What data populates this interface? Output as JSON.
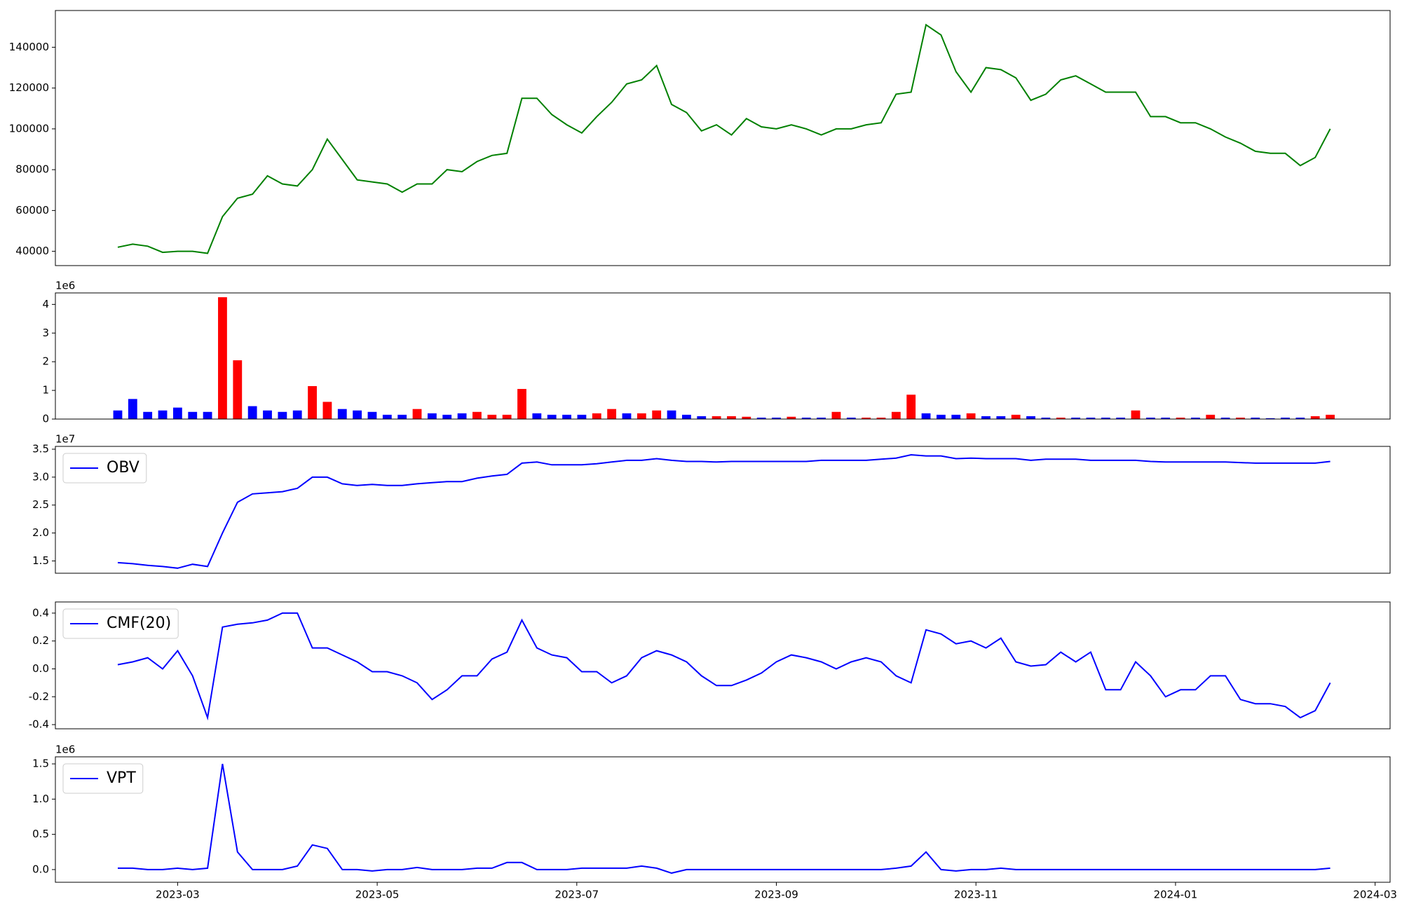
{
  "chart_data": [
    {
      "type": "line",
      "color": "#008000",
      "xlim": [
        0.775,
        14.15
      ],
      "ylim": [
        33000,
        158000
      ],
      "yticks": [
        40000,
        60000,
        80000,
        100000,
        120000,
        140000
      ],
      "x": [
        1.4,
        1.55,
        1.7,
        1.85,
        2,
        2.15,
        2.3,
        2.45,
        2.6,
        2.75,
        2.9,
        3.05,
        3.2,
        3.35,
        3.5,
        3.65,
        3.8,
        3.95,
        4.1,
        4.25,
        4.4,
        4.55,
        4.7,
        4.85,
        5,
        5.15,
        5.3,
        5.45,
        5.6,
        5.75,
        5.9,
        6.05,
        6.2,
        6.35,
        6.5,
        6.65,
        6.8,
        6.95,
        7.1,
        7.25,
        7.4,
        7.55,
        7.7,
        7.85,
        8,
        8.15,
        8.3,
        8.45,
        8.6,
        8.75,
        8.9,
        9.05,
        9.2,
        9.35,
        9.5,
        9.65,
        9.8,
        9.95,
        10.1,
        10.25,
        10.4,
        10.55,
        10.7,
        10.85,
        11,
        11.15,
        11.3,
        11.45,
        11.6,
        11.75,
        11.9,
        12.05,
        12.2,
        12.35,
        12.5,
        12.65,
        12.8,
        12.95,
        13.1,
        13.25,
        13.4,
        13.55
      ],
      "values": [
        42000,
        43500,
        42500,
        39500,
        40000,
        40000,
        39000,
        57000,
        66000,
        68000,
        77000,
        73000,
        72000,
        80000,
        95000,
        85000,
        75000,
        74000,
        73000,
        69000,
        73000,
        73000,
        80000,
        79000,
        84000,
        87000,
        88000,
        115000,
        115000,
        107000,
        102000,
        98000,
        106000,
        113000,
        122000,
        124000,
        131000,
        112000,
        108000,
        99000,
        102000,
        97000,
        105000,
        101000,
        100000,
        102000,
        100000,
        97000,
        100000,
        100000,
        102000,
        103000,
        117000,
        118000,
        151000,
        146000,
        128000,
        118000,
        130000,
        129000,
        125000,
        114000,
        117000,
        124000,
        126000,
        122000,
        118000,
        118000,
        118000,
        106000,
        106000,
        103000,
        103000,
        100000,
        96000,
        93000,
        89000,
        88000,
        88000,
        82000,
        86000,
        100000
      ]
    },
    {
      "type": "bar",
      "offset_label": "1e6",
      "xlim": [
        0.775,
        14.15
      ],
      "ylim": [
        0,
        4.4
      ],
      "yticks": [
        0,
        1,
        2,
        3,
        4
      ],
      "x": [
        1.4,
        1.55,
        1.7,
        1.85,
        2,
        2.15,
        2.3,
        2.45,
        2.6,
        2.75,
        2.9,
        3.05,
        3.2,
        3.35,
        3.5,
        3.65,
        3.8,
        3.95,
        4.1,
        4.25,
        4.4,
        4.55,
        4.7,
        4.85,
        5,
        5.15,
        5.3,
        5.45,
        5.6,
        5.75,
        5.9,
        6.05,
        6.2,
        6.35,
        6.5,
        6.65,
        6.8,
        6.95,
        7.1,
        7.25,
        7.4,
        7.55,
        7.7,
        7.85,
        8,
        8.15,
        8.3,
        8.45,
        8.6,
        8.75,
        8.9,
        9.05,
        9.2,
        9.35,
        9.5,
        9.65,
        9.8,
        9.95,
        10.1,
        10.25,
        10.4,
        10.55,
        10.7,
        10.85,
        11,
        11.15,
        11.3,
        11.45,
        11.6,
        11.75,
        11.9,
        12.05,
        12.2,
        12.35,
        12.5,
        12.65,
        12.8,
        12.95,
        13.1,
        13.25,
        13.4,
        13.55
      ],
      "values": [
        0.3,
        0.7,
        0.25,
        0.3,
        0.4,
        0.25,
        0.25,
        4.25,
        2.05,
        0.45,
        0.3,
        0.25,
        0.3,
        1.15,
        0.6,
        0.35,
        0.3,
        0.25,
        0.15,
        0.15,
        0.35,
        0.2,
        0.15,
        0.2,
        0.25,
        0.15,
        0.15,
        1.05,
        0.2,
        0.15,
        0.15,
        0.15,
        0.2,
        0.35,
        0.2,
        0.2,
        0.3,
        0.3,
        0.15,
        0.1,
        0.1,
        0.1,
        0.08,
        0.05,
        0.05,
        0.08,
        0.05,
        0.05,
        0.25,
        0.05,
        0.05,
        0.05,
        0.25,
        0.85,
        0.2,
        0.15,
        0.15,
        0.2,
        0.1,
        0.1,
        0.15,
        0.1,
        0.05,
        0.05,
        0.05,
        0.05,
        0.05,
        0.05,
        0.3,
        0.05,
        0.05,
        0.05,
        0.05,
        0.15,
        0.05,
        0.05,
        0.05,
        0.03,
        0.05,
        0.05,
        0.1,
        0.15
      ],
      "colors": [
        "blue",
        "blue",
        "blue",
        "blue",
        "blue",
        "blue",
        "blue",
        "red",
        "red",
        "blue",
        "blue",
        "blue",
        "blue",
        "red",
        "red",
        "blue",
        "blue",
        "blue",
        "blue",
        "blue",
        "red",
        "blue",
        "blue",
        "blue",
        "red",
        "red",
        "red",
        "red",
        "blue",
        "blue",
        "blue",
        "blue",
        "red",
        "red",
        "blue",
        "red",
        "red",
        "blue",
        "blue",
        "blue",
        "red",
        "red",
        "red",
        "blue",
        "blue",
        "red",
        "blue",
        "blue",
        "red",
        "blue",
        "red",
        "red",
        "red",
        "red",
        "blue",
        "blue",
        "blue",
        "red",
        "blue",
        "blue",
        "red",
        "blue",
        "blue",
        "red",
        "blue",
        "blue",
        "blue",
        "blue",
        "red",
        "blue",
        "blue",
        "red",
        "blue",
        "red",
        "blue",
        "red",
        "blue",
        "blue",
        "blue",
        "blue",
        "red",
        "red"
      ]
    },
    {
      "type": "line",
      "offset_label": "1e7",
      "legend": "upper left",
      "xlim": [
        0.775,
        14.15
      ],
      "ylim": [
        1.28,
        3.55
      ],
      "yticks": [
        1.5,
        {
          "value": 2,
          "label": "2.0"
        },
        2.5,
        {
          "value": 3,
          "label": "3.0"
        },
        3.5
      ],
      "x": [
        1.4,
        1.55,
        1.7,
        1.85,
        2,
        2.15,
        2.3,
        2.45,
        2.6,
        2.75,
        2.9,
        3.05,
        3.2,
        3.35,
        3.5,
        3.65,
        3.8,
        3.95,
        4.1,
        4.25,
        4.4,
        4.55,
        4.7,
        4.85,
        5,
        5.15,
        5.3,
        5.45,
        5.6,
        5.75,
        5.9,
        6.05,
        6.2,
        6.35,
        6.5,
        6.65,
        6.8,
        6.95,
        7.1,
        7.25,
        7.4,
        7.55,
        7.7,
        7.85,
        8,
        8.15,
        8.3,
        8.45,
        8.6,
        8.75,
        8.9,
        9.05,
        9.2,
        9.35,
        9.5,
        9.65,
        9.8,
        9.95,
        10.1,
        10.25,
        10.4,
        10.55,
        10.7,
        10.85,
        11,
        11.15,
        11.3,
        11.45,
        11.6,
        11.75,
        11.9,
        12.05,
        12.2,
        12.35,
        12.5,
        12.65,
        12.8,
        12.95,
        13.1,
        13.25,
        13.4,
        13.55
      ],
      "series": [
        {
          "name": "OBV",
          "color": "#0000ff",
          "values": [
            1.47,
            1.45,
            1.42,
            1.4,
            1.37,
            1.44,
            1.4,
            2.0,
            2.55,
            2.7,
            2.72,
            2.74,
            2.8,
            3.0,
            3.0,
            2.88,
            2.85,
            2.87,
            2.85,
            2.85,
            2.88,
            2.9,
            2.92,
            2.92,
            2.98,
            3.02,
            3.05,
            3.25,
            3.27,
            3.22,
            3.22,
            3.22,
            3.24,
            3.27,
            3.3,
            3.3,
            3.33,
            3.3,
            3.28,
            3.28,
            3.27,
            3.28,
            3.28,
            3.28,
            3.28,
            3.28,
            3.28,
            3.3,
            3.3,
            3.3,
            3.3,
            3.32,
            3.34,
            3.4,
            3.38,
            3.38,
            3.33,
            3.34,
            3.33,
            3.33,
            3.33,
            3.3,
            3.32,
            3.32,
            3.32,
            3.3,
            3.3,
            3.3,
            3.3,
            3.28,
            3.27,
            3.27,
            3.27,
            3.27,
            3.27,
            3.26,
            3.25,
            3.25,
            3.25,
            3.25,
            3.25,
            3.28
          ]
        }
      ]
    },
    {
      "type": "line",
      "legend": "upper left",
      "xlim": [
        0.775,
        14.15
      ],
      "ylim": [
        -0.43,
        0.48
      ],
      "yticks": [
        -0.4,
        -0.2,
        {
          "value": 0,
          "label": "0.0"
        },
        0.2,
        0.4
      ],
      "x": [
        1.4,
        1.55,
        1.7,
        1.85,
        2,
        2.15,
        2.3,
        2.45,
        2.6,
        2.75,
        2.9,
        3.05,
        3.2,
        3.35,
        3.5,
        3.65,
        3.8,
        3.95,
        4.1,
        4.25,
        4.4,
        4.55,
        4.7,
        4.85,
        5,
        5.15,
        5.3,
        5.45,
        5.6,
        5.75,
        5.9,
        6.05,
        6.2,
        6.35,
        6.5,
        6.65,
        6.8,
        6.95,
        7.1,
        7.25,
        7.4,
        7.55,
        7.7,
        7.85,
        8,
        8.15,
        8.3,
        8.45,
        8.6,
        8.75,
        8.9,
        9.05,
        9.2,
        9.35,
        9.5,
        9.65,
        9.8,
        9.95,
        10.1,
        10.25,
        10.4,
        10.55,
        10.7,
        10.85,
        11,
        11.15,
        11.3,
        11.45,
        11.6,
        11.75,
        11.9,
        12.05,
        12.2,
        12.35,
        12.5,
        12.65,
        12.8,
        12.95,
        13.1,
        13.25,
        13.4,
        13.55
      ],
      "series": [
        {
          "name": "CMF(20)",
          "color": "#0000ff",
          "values": [
            0.03,
            0.05,
            0.08,
            0.0,
            0.13,
            -0.05,
            -0.35,
            0.3,
            0.32,
            0.33,
            0.35,
            0.4,
            0.4,
            0.15,
            0.15,
            0.1,
            0.05,
            -0.02,
            -0.02,
            -0.05,
            -0.1,
            -0.22,
            -0.15,
            -0.05,
            -0.05,
            0.07,
            0.12,
            0.35,
            0.15,
            0.1,
            0.08,
            -0.02,
            -0.02,
            -0.1,
            -0.05,
            0.08,
            0.13,
            0.1,
            0.05,
            -0.05,
            -0.12,
            -0.12,
            -0.08,
            -0.03,
            0.05,
            0.1,
            0.08,
            0.05,
            0.0,
            0.05,
            0.08,
            0.05,
            -0.05,
            -0.1,
            0.28,
            0.25,
            0.18,
            0.2,
            0.15,
            0.22,
            0.05,
            0.02,
            0.03,
            0.12,
            0.05,
            0.12,
            -0.15,
            -0.15,
            0.05,
            -0.05,
            -0.2,
            -0.15,
            -0.15,
            -0.05,
            -0.05,
            -0.22,
            -0.25,
            -0.25,
            -0.27,
            -0.35,
            -0.3,
            -0.1
          ]
        }
      ]
    },
    {
      "type": "line",
      "offset_label": "1e6",
      "legend": "upper left",
      "xlim": [
        0.775,
        14.15
      ],
      "ylim": [
        -0.18,
        1.6
      ],
      "yticks": [
        {
          "value": 0,
          "label": "0.0"
        },
        0.5,
        {
          "value": 1,
          "label": "1.0"
        },
        1.5
      ],
      "xticks": [
        {
          "value": 2,
          "label": "2023-03"
        },
        {
          "value": 4,
          "label": "2023-05"
        },
        {
          "value": 6,
          "label": "2023-07"
        },
        {
          "value": 8,
          "label": "2023-09"
        },
        {
          "value": 10,
          "label": "2023-11"
        },
        {
          "value": 12,
          "label": "2024-01"
        },
        {
          "value": 14,
          "label": "2024-03"
        }
      ],
      "x": [
        1.4,
        1.55,
        1.7,
        1.85,
        2,
        2.15,
        2.3,
        2.45,
        2.6,
        2.75,
        2.9,
        3.05,
        3.2,
        3.35,
        3.5,
        3.65,
        3.8,
        3.95,
        4.1,
        4.25,
        4.4,
        4.55,
        4.7,
        4.85,
        5,
        5.15,
        5.3,
        5.45,
        5.6,
        5.75,
        5.9,
        6.05,
        6.2,
        6.35,
        6.5,
        6.65,
        6.8,
        6.95,
        7.1,
        7.25,
        7.4,
        7.55,
        7.7,
        7.85,
        8,
        8.15,
        8.3,
        8.45,
        8.6,
        8.75,
        8.9,
        9.05,
        9.2,
        9.35,
        9.5,
        9.65,
        9.8,
        9.95,
        10.1,
        10.25,
        10.4,
        10.55,
        10.7,
        10.85,
        11,
        11.15,
        11.3,
        11.45,
        11.6,
        11.75,
        11.9,
        12.05,
        12.2,
        12.35,
        12.5,
        12.65,
        12.8,
        12.95,
        13.1,
        13.25,
        13.4,
        13.55
      ],
      "series": [
        {
          "name": "VPT",
          "color": "#0000ff",
          "values": [
            0.02,
            0.02,
            0.0,
            0.0,
            0.02,
            0.0,
            0.02,
            1.5,
            0.25,
            0.0,
            0.0,
            0.0,
            0.05,
            0.35,
            0.3,
            0.0,
            0.0,
            -0.02,
            0.0,
            0.0,
            0.03,
            0.0,
            0.0,
            0.0,
            0.02,
            0.02,
            0.1,
            0.1,
            0.0,
            0.0,
            0.0,
            0.02,
            0.02,
            0.02,
            0.02,
            0.05,
            0.02,
            -0.05,
            0.0,
            0.0,
            0.0,
            0.0,
            0.0,
            0.0,
            0.0,
            0.0,
            0.0,
            0.0,
            0.0,
            0.0,
            0.0,
            0.0,
            0.02,
            0.05,
            0.25,
            0.0,
            -0.02,
            0.0,
            0.0,
            0.02,
            0.0,
            0.0,
            0.0,
            0.0,
            0.0,
            0.0,
            0.0,
            0.0,
            0.0,
            0.0,
            0.0,
            0.0,
            0.0,
            0.0,
            0.0,
            0.0,
            0.0,
            0.0,
            0.0,
            0.0,
            0.0,
            0.02
          ]
        }
      ]
    }
  ]
}
